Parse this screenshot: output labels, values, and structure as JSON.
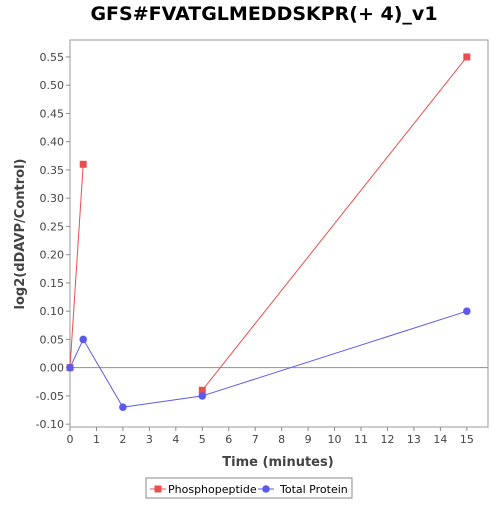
{
  "chart_data": {
    "type": "line",
    "title": "GFS#FVATGLMEDDSKPR(+ 4)_v1",
    "xlabel": "Time (minutes)",
    "ylabel": "log2(dDAVP/Control)",
    "xlim": [
      0,
      15.8
    ],
    "ylim": [
      -0.105,
      0.58
    ],
    "xticks": [
      "0",
      "1",
      "2",
      "3",
      "4",
      "5",
      "6",
      "7",
      "8",
      "9",
      "10",
      "11",
      "12",
      "13",
      "14",
      "15"
    ],
    "yticks": [
      "-0.10",
      "-0.05",
      "0.00",
      "0.05",
      "0.10",
      "0.15",
      "0.20",
      "0.25",
      "0.30",
      "0.35",
      "0.40",
      "0.45",
      "0.50",
      "0.55"
    ],
    "legend_position": "bottom",
    "reference_line_y": 0,
    "grid": false,
    "series": [
      {
        "name": "Phosphopeptide",
        "color": "#e8504f",
        "marker": "square",
        "segments": [
          [
            [
              0,
              0
            ],
            [
              0.5,
              0.36
            ]
          ],
          [
            [
              5,
              -0.04
            ],
            [
              15,
              0.55
            ]
          ]
        ]
      },
      {
        "name": "Total Protein",
        "color": "#5b5bea",
        "marker": "circle",
        "segments": [
          [
            [
              0,
              0
            ],
            [
              0.5,
              0.05
            ],
            [
              2,
              -0.07
            ],
            [
              5,
              -0.05
            ],
            [
              15,
              0.1
            ]
          ]
        ]
      }
    ]
  }
}
